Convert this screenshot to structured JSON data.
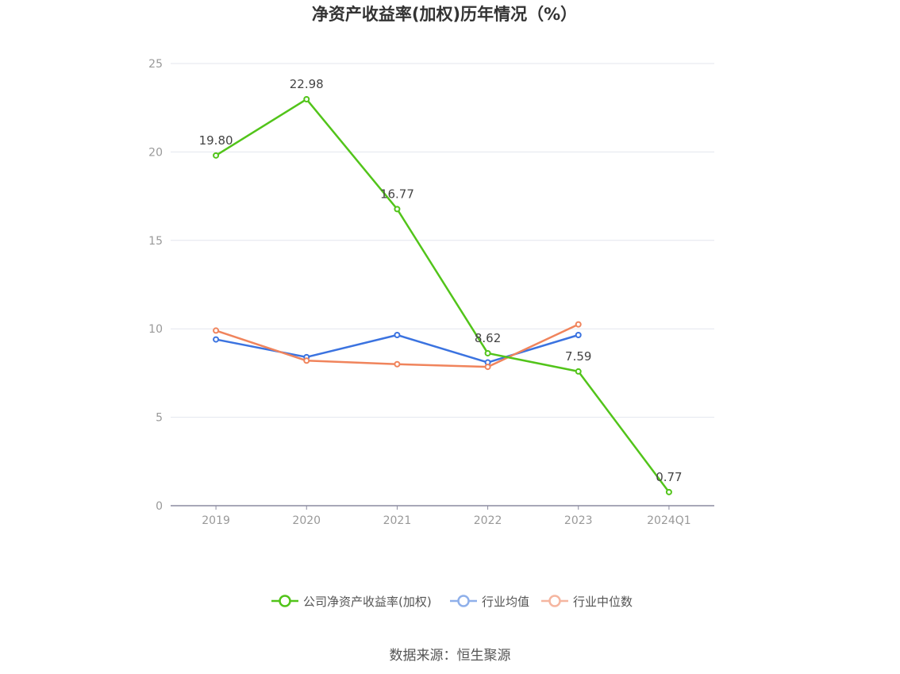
{
  "chart_data": {
    "type": "line",
    "title": "净资产收益率(加权)历年情况（%）",
    "categories": [
      "2019",
      "2020",
      "2021",
      "2022",
      "2023",
      "2024Q1"
    ],
    "ylim": [
      0,
      25
    ],
    "yticks": [
      0,
      5,
      10,
      15,
      20,
      25
    ],
    "grid": true,
    "legend_position": "bottom",
    "series": [
      {
        "name": "公司净资产收益率(加权)",
        "color": "#52c41a",
        "values": [
          19.8,
          22.98,
          16.77,
          8.62,
          7.59,
          0.77
        ],
        "labels": [
          "19.80",
          "22.98",
          "16.77",
          "8.62",
          "7.59",
          "0.77"
        ],
        "show_labels": true
      },
      {
        "name": "行业均值",
        "color": "#3b73e0",
        "values": [
          9.4,
          8.4,
          9.65,
          8.1,
          9.65,
          null
        ],
        "show_labels": false
      },
      {
        "name": "行业中位数",
        "color": "#f0845c",
        "values": [
          9.9,
          8.2,
          8.0,
          7.85,
          10.25,
          null
        ],
        "show_labels": false
      }
    ]
  },
  "legend_colors": {
    "公司净资产收益率(加权)": "#52c41a",
    "行业均值": "#8fb0ea",
    "行业中位数": "#f5b6a0"
  },
  "source": "数据来源：恒生聚源"
}
